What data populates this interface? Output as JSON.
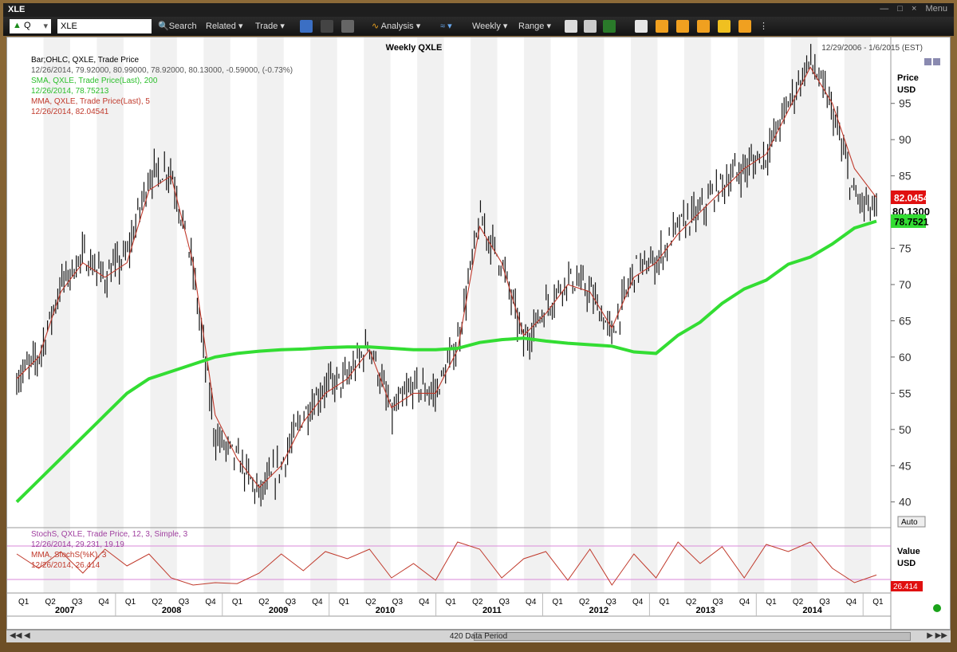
{
  "window": {
    "title": "XLE",
    "controls": [
      "—",
      "□",
      "×",
      "Menu"
    ]
  },
  "toolbar": {
    "symbol_type": "Q",
    "symbol_value": "XLE",
    "search_label": "Search",
    "related_label": "Related",
    "trade_label": "Trade",
    "analysis_label": "Analysis",
    "weekly_label": "Weekly",
    "range_label": "Range"
  },
  "header": {
    "chart_title": "Weekly QXLE",
    "date_range": "12/29/2006 - 1/6/2015 (EST)"
  },
  "legend": {
    "l1": "Bar;OHLC, QXLE, Trade Price",
    "l2": "12/26/2014, 79.92000, 80.99000, 78.92000, 80.13000, -0.59000, (-0.73%)",
    "l3": "SMA, QXLE, Trade Price(Last), 200",
    "l4": "12/26/2014, 78.75213",
    "l5": "MMA, QXLE, Trade Price(Last), 5",
    "l6": "12/26/2014, 82.04541"
  },
  "stoch_legend": {
    "l1": "StochS, QXLE, Trade Price, 12, 3, Simple, 3",
    "l2": "12/26/2014, 29.231, 19.19",
    "l3": "MMA, StochS(%K), 3",
    "l4": "12/26/2014, 26.414"
  },
  "price_axis": {
    "title": "Price",
    "unit": "USD",
    "auto_label": "Auto"
  },
  "value_axis": {
    "title": "Value",
    "unit": "USD"
  },
  "price_tags": {
    "mma": "82.0454",
    "last": "80.1300",
    "sma": "78.7521",
    "stoch": "26.414"
  },
  "colors": {
    "sma": "#33dd33",
    "mma": "#c0392b",
    "bars": "#111111",
    "stoch": "#c0392b",
    "tag_red": "#e01010",
    "tag_green": "#33dd33"
  },
  "scroll": {
    "label": "420 Data Period"
  },
  "chart_data": {
    "type": "line",
    "title": "Weekly QXLE",
    "x": [
      "2007-01",
      "2007-04",
      "2007-07",
      "2007-10",
      "2008-01",
      "2008-04",
      "2008-06",
      "2008-07",
      "2008-09",
      "2008-10",
      "2008-12",
      "2009-03",
      "2009-04",
      "2009-07",
      "2009-10",
      "2010-01",
      "2010-02",
      "2010-05",
      "2010-07",
      "2010-09",
      "2010-12",
      "2011-04",
      "2011-06",
      "2011-08",
      "2011-10",
      "2012-01",
      "2012-04",
      "2012-06",
      "2012-09",
      "2012-12",
      "2013-03",
      "2013-05",
      "2013-09",
      "2013-12",
      "2014-03",
      "2014-06",
      "2014-07",
      "2014-09",
      "2014-11",
      "2014-12"
    ],
    "series": [
      {
        "name": "Bar;OHLC, QXLE, Trade Price",
        "values": [
          57,
          60,
          70,
          74,
          71,
          74,
          85,
          86,
          72,
          49,
          46,
          41,
          45,
          52,
          56,
          57,
          62,
          52,
          56,
          55,
          62,
          79,
          73,
          62,
          67,
          71,
          69,
          63,
          72,
          73,
          78,
          80,
          84,
          86,
          88,
          95,
          101,
          94,
          82,
          80
        ]
      },
      {
        "name": "SMA, QXLE, Trade Price(Last), 200",
        "values": [
          40,
          43,
          46,
          49,
          52,
          55,
          57,
          58,
          59,
          60,
          60.5,
          60.8,
          61,
          61.1,
          61.3,
          61.4,
          61.4,
          61.2,
          61,
          61,
          61.2,
          62,
          62.4,
          62.6,
          62.2,
          61.9,
          61.7,
          61.5,
          60.7,
          60.5,
          63,
          64.8,
          67.4,
          69.4,
          70.6,
          72.8,
          73.8,
          75.6,
          77.8,
          78.75
        ]
      },
      {
        "name": "MMA, QXLE, Trade Price(Last), 5",
        "values": [
          57,
          60,
          69,
          73,
          71,
          73,
          83,
          85,
          73,
          52,
          46,
          42,
          45,
          51,
          55,
          57,
          61,
          53,
          55,
          55,
          61,
          78,
          73,
          63,
          66,
          70,
          69,
          64,
          71,
          73,
          77,
          80,
          83,
          86,
          88,
          94,
          100,
          95,
          86,
          82
        ]
      }
    ],
    "stochastic": {
      "name": "StochS, QXLE, Trade Price, 12, 3, Simple, 3",
      "values": [
        70,
        40,
        75,
        30,
        80,
        45,
        70,
        20,
        5,
        10,
        8,
        30,
        70,
        35,
        75,
        60,
        80,
        20,
        50,
        15,
        95,
        80,
        20,
        60,
        75,
        15,
        80,
        5,
        70,
        20,
        95,
        50,
        85,
        20,
        90,
        75,
        95,
        40,
        10,
        26
      ]
    },
    "ylim": [
      37,
      103
    ],
    "y_ticks": [
      40,
      45,
      50,
      55,
      60,
      65,
      70,
      75,
      80,
      85,
      90,
      95
    ],
    "quarters": [
      "Q1",
      "Q2",
      "Q3",
      "Q4",
      "Q1",
      "Q2",
      "Q3",
      "Q4",
      "Q1",
      "Q2",
      "Q3",
      "Q4",
      "Q1",
      "Q2",
      "Q3",
      "Q4",
      "Q1",
      "Q2",
      "Q3",
      "Q4",
      "Q1",
      "Q2",
      "Q3",
      "Q4",
      "Q1",
      "Q2",
      "Q3",
      "Q4",
      "Q1",
      "Q2",
      "Q3",
      "Q4",
      "Q1"
    ],
    "years": [
      "2007",
      "2008",
      "2009",
      "2010",
      "2011",
      "2012",
      "2013",
      "2014"
    ],
    "grid": true
  }
}
